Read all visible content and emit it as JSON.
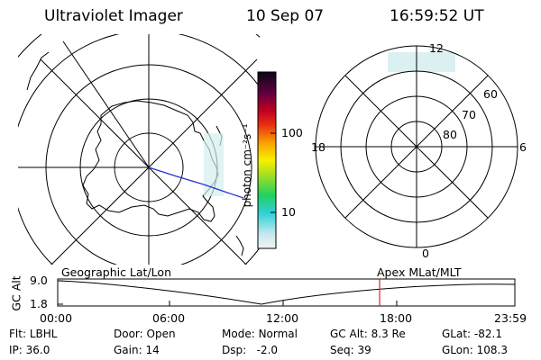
{
  "header": {
    "instrument": "Ultraviolet Imager",
    "date": "10 Sep 07",
    "time": "16:59:52 UT"
  },
  "colorbar": {
    "unit_label": "photon cm⁻²s⁻¹",
    "ticks": [
      "100",
      "10"
    ]
  },
  "polar_plot": {
    "mlt_labels": {
      "top": "12",
      "bottom": "0",
      "left": "18",
      "right": "6"
    },
    "lat_labels": [
      "60",
      "70",
      "80"
    ]
  },
  "timeline": {
    "left_label": "Geographic Lat/Lon",
    "right_label": "Apex MLat/MLT",
    "axis_label": "GC Alt",
    "y_ticks": [
      "9.0",
      "1.8"
    ],
    "x_ticks": [
      "00:00",
      "06:00",
      "12:00",
      "18:00",
      "23:59"
    ],
    "marker_color": "#dd2222"
  },
  "info": {
    "row1": [
      {
        "label": "Flt:",
        "value": "LBHL"
      },
      {
        "label": "Door:",
        "value": "Open"
      },
      {
        "label": "Mode:",
        "value": "Normal"
      },
      {
        "label": "GC Alt:",
        "value": "8.3 Re"
      },
      {
        "label": "GLat:",
        "value": "-82.1"
      }
    ],
    "row2": [
      {
        "label": "IP:",
        "value": "36.0"
      },
      {
        "label": "Gain:",
        "value": "14"
      },
      {
        "label": "Dsp:",
        "value": "-2.0"
      },
      {
        "label": "Seq:",
        "value": "39"
      },
      {
        "label": "GLon:",
        "value": "108.3"
      }
    ]
  }
}
